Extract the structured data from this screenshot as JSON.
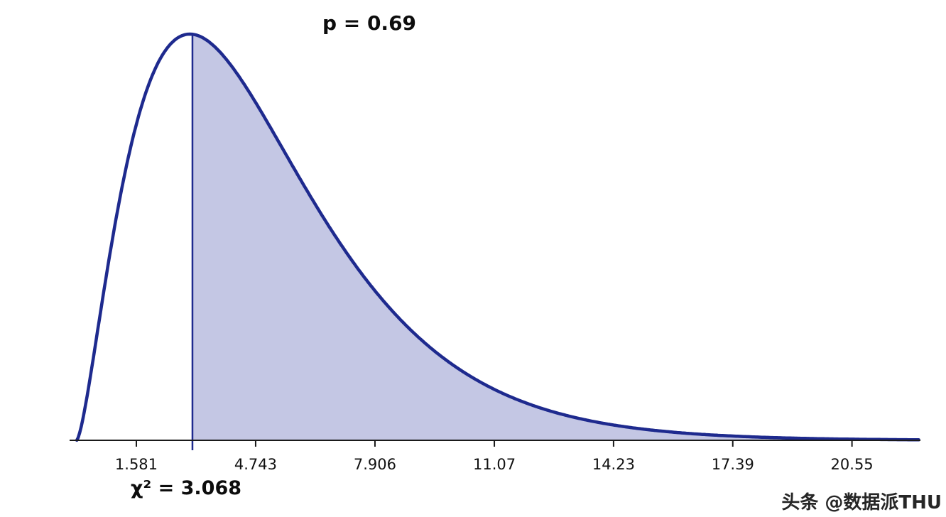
{
  "chart_data": {
    "type": "area",
    "title": "",
    "distribution": "chi-square",
    "df": 5,
    "p_label": "p = 0.69",
    "p_value": 0.69,
    "statistic_label": "χ² = 3.068",
    "statistic": 3.068,
    "shade_from": 3.068,
    "shade_direction": "right",
    "x_ticks": [
      1.581,
      4.743,
      7.906,
      11.07,
      14.23,
      17.39,
      20.55
    ],
    "x_tick_labels": [
      "1.581",
      "4.743",
      "7.906",
      "11.07",
      "14.23",
      "17.39",
      "20.55"
    ],
    "xlim": [
      0,
      22.4
    ],
    "grid": false,
    "legend": false,
    "colors": {
      "curve": "#1e2a8e",
      "fill": "#c4c7e4",
      "axis": "#1a1a1a",
      "tick_text": "#111111"
    }
  },
  "watermark": {
    "text": "头条 @数据派THU"
  }
}
